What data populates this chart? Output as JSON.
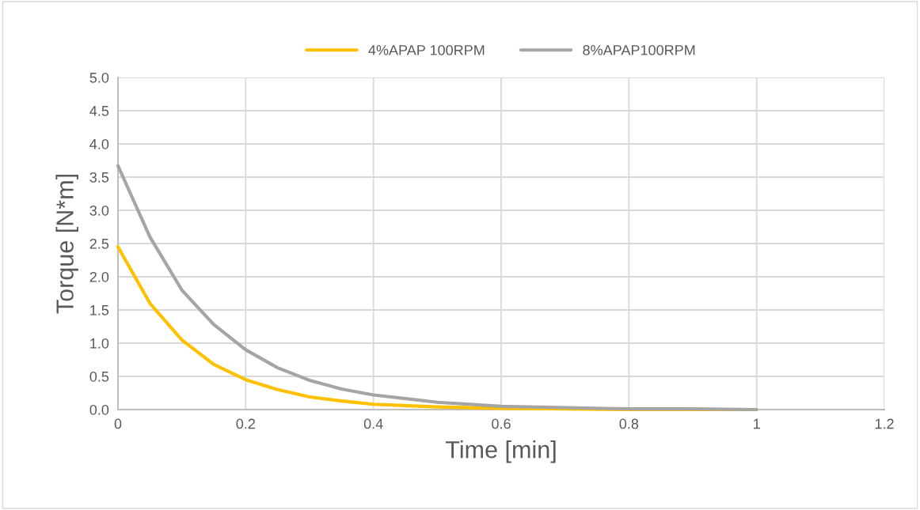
{
  "chart_data": {
    "type": "line",
    "xlabel": "Time [min]",
    "ylabel": "Torque [N*m]",
    "x": [
      0,
      0.05,
      0.1,
      0.15,
      0.2,
      0.25,
      0.3,
      0.35,
      0.4,
      0.5,
      0.6,
      0.7,
      0.8,
      0.9,
      1.0
    ],
    "series": [
      {
        "name": "4%APAP 100RPM",
        "color": "#ffc000",
        "values": [
          2.45,
          1.6,
          1.05,
          0.68,
          0.45,
          0.3,
          0.19,
          0.13,
          0.08,
          0.04,
          0.02,
          0.01,
          0.0,
          0.0,
          0.0
        ]
      },
      {
        "name": "8%APAP100RPM",
        "color": "#a5a5a5",
        "values": [
          3.67,
          2.6,
          1.8,
          1.28,
          0.9,
          0.63,
          0.44,
          0.31,
          0.22,
          0.11,
          0.05,
          0.03,
          0.01,
          0.01,
          0.0
        ]
      }
    ],
    "xlim": [
      0,
      1.2
    ],
    "xticks": [
      0,
      0.2,
      0.4,
      0.6,
      0.8,
      1,
      1.2
    ],
    "ylim": [
      0,
      5
    ],
    "yticks": [
      {
        "value": 0,
        "label": "0.0"
      },
      {
        "value": 0.5,
        "label": "0.5"
      },
      {
        "value": 1,
        "label": "1.0"
      },
      {
        "value": 1.5,
        "label": "1.5"
      },
      {
        "value": 2,
        "label": "2.0"
      },
      {
        "value": 2.5,
        "label": "2.5"
      },
      {
        "value": 3,
        "label": "3.0"
      },
      {
        "value": 3.5,
        "label": "3.5"
      },
      {
        "value": 4,
        "label": "4.0"
      },
      {
        "value": 4.5,
        "label": "4.5"
      },
      {
        "value": 5,
        "label": "5.0"
      }
    ],
    "grid": true,
    "legend": "top",
    "marker": "none",
    "line_style": "solid"
  }
}
